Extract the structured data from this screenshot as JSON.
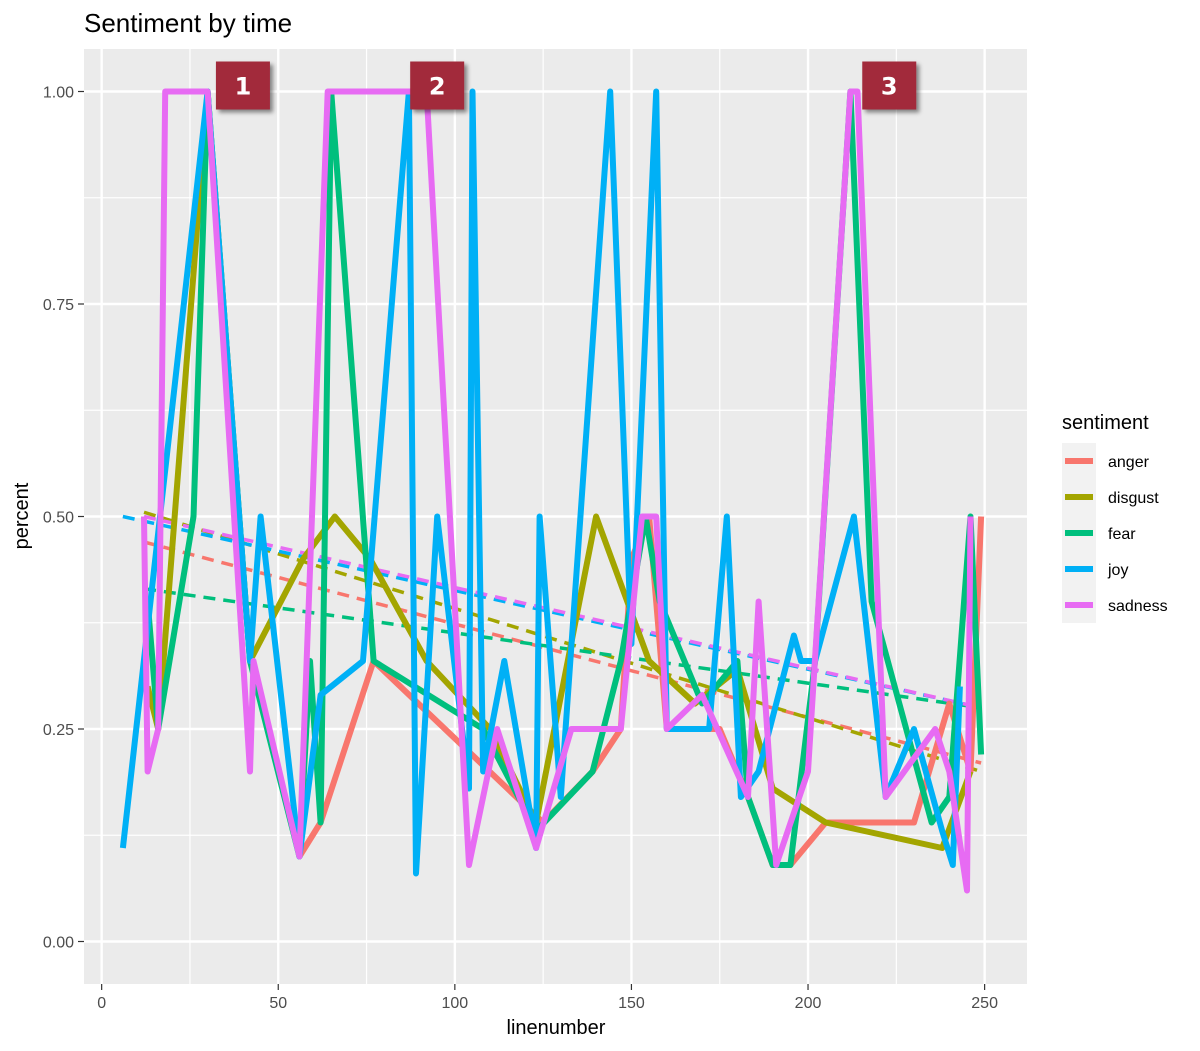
{
  "chart_data": {
    "type": "line",
    "title": "Sentiment by time",
    "xlabel": "linenumber",
    "ylabel": "percent",
    "xlim": [
      -5,
      262
    ],
    "ylim": [
      -0.05,
      1.05
    ],
    "x_ticks": [
      0,
      50,
      100,
      150,
      200,
      250
    ],
    "x_tick_labels": [
      "0",
      "50",
      "100",
      "150",
      "200",
      "250"
    ],
    "y_ticks": [
      0,
      0.25,
      0.5,
      0.75,
      1.0
    ],
    "y_tick_labels": [
      "0.00",
      "0.25",
      "0.50",
      "0.75",
      "1.00"
    ],
    "grid": true,
    "legend": {
      "title": "sentiment",
      "position": "right"
    },
    "series": [
      {
        "name": "anger",
        "color": "#F8766D",
        "points": [
          [
            56,
            0.1
          ],
          [
            62,
            0.14
          ],
          [
            77,
            0.33
          ],
          [
            125,
            0.14
          ],
          [
            139,
            0.2
          ],
          [
            147,
            0.25
          ],
          [
            150,
            0.45
          ],
          [
            155,
            0.5
          ],
          [
            160,
            0.25
          ],
          [
            175,
            0.25
          ],
          [
            183,
            0.17
          ],
          [
            190,
            0.09
          ],
          [
            195,
            0.09
          ],
          [
            205,
            0.14
          ],
          [
            230,
            0.14
          ],
          [
            240,
            0.28
          ],
          [
            246,
            0.2
          ],
          [
            249,
            0.5
          ]
        ],
        "trend": [
          [
            12,
            0.47
          ],
          [
            249,
            0.21
          ]
        ]
      },
      {
        "name": "disgust",
        "color": "#A3A500",
        "points": [
          [
            13,
            0.3
          ],
          [
            16,
            0.25
          ],
          [
            30,
            1.0
          ],
          [
            42,
            0.33
          ],
          [
            57,
            0.45
          ],
          [
            66,
            0.5
          ],
          [
            76,
            0.45
          ],
          [
            92,
            0.33
          ],
          [
            110,
            0.25
          ],
          [
            123,
            0.14
          ],
          [
            140,
            0.5
          ],
          [
            155,
            0.33
          ],
          [
            168,
            0.28
          ],
          [
            180,
            0.32
          ],
          [
            190,
            0.18
          ],
          [
            205,
            0.14
          ],
          [
            238,
            0.11
          ],
          [
            246,
            0.2
          ]
        ],
        "trend": [
          [
            12,
            0.505
          ],
          [
            249,
            0.2
          ]
        ]
      },
      {
        "name": "fear",
        "color": "#00BF7D",
        "points": [
          [
            13,
            0.4
          ],
          [
            16,
            0.25
          ],
          [
            26,
            0.5
          ],
          [
            30,
            1.0
          ],
          [
            42,
            0.33
          ],
          [
            56,
            0.1
          ],
          [
            59,
            0.33
          ],
          [
            62,
            0.14
          ],
          [
            65,
            1.0
          ],
          [
            77,
            0.33
          ],
          [
            108,
            0.25
          ],
          [
            123,
            0.13
          ],
          [
            139,
            0.2
          ],
          [
            147,
            0.33
          ],
          [
            154,
            0.5
          ],
          [
            158,
            0.4
          ],
          [
            170,
            0.28
          ],
          [
            180,
            0.33
          ],
          [
            183,
            0.17
          ],
          [
            190,
            0.09
          ],
          [
            195,
            0.09
          ],
          [
            202,
            0.33
          ],
          [
            212,
            1.0
          ],
          [
            218,
            0.4
          ],
          [
            235,
            0.14
          ],
          [
            240,
            0.17
          ],
          [
            246,
            0.5
          ],
          [
            249,
            0.22
          ]
        ],
        "trend": [
          [
            12,
            0.415
          ],
          [
            249,
            0.275
          ]
        ]
      },
      {
        "name": "joy",
        "color": "#00B0F6",
        "points": [
          [
            6,
            0.11
          ],
          [
            30,
            1.0
          ],
          [
            42,
            0.33
          ],
          [
            45,
            0.5
          ],
          [
            56,
            0.1
          ],
          [
            62,
            0.29
          ],
          [
            74,
            0.33
          ],
          [
            87,
            1.0
          ],
          [
            89,
            0.08
          ],
          [
            95,
            0.5
          ],
          [
            104,
            0.18
          ],
          [
            105,
            1.0
          ],
          [
            108,
            0.2
          ],
          [
            114,
            0.33
          ],
          [
            123,
            0.11
          ],
          [
            124,
            0.5
          ],
          [
            130,
            0.17
          ],
          [
            144,
            1.0
          ],
          [
            150,
            0.35
          ],
          [
            157,
            1.0
          ],
          [
            160,
            0.25
          ],
          [
            172,
            0.25
          ],
          [
            177,
            0.5
          ],
          [
            181,
            0.17
          ],
          [
            186,
            0.2
          ],
          [
            196,
            0.36
          ],
          [
            198,
            0.33
          ],
          [
            202,
            0.33
          ],
          [
            213,
            0.5
          ],
          [
            222,
            0.17
          ],
          [
            230,
            0.25
          ],
          [
            238,
            0.13
          ],
          [
            241,
            0.09
          ],
          [
            243,
            0.3
          ]
        ],
        "trend": [
          [
            6,
            0.5
          ],
          [
            249,
            0.275
          ]
        ]
      },
      {
        "name": "sadness",
        "color": "#E76BF3",
        "points": [
          [
            12,
            0.5
          ],
          [
            13,
            0.2
          ],
          [
            16,
            0.25
          ],
          [
            18,
            1.0
          ],
          [
            30,
            1.0
          ],
          [
            42,
            0.2
          ],
          [
            43,
            0.33
          ],
          [
            56,
            0.1
          ],
          [
            64,
            1.0
          ],
          [
            89,
            1.0
          ],
          [
            92,
            1.0
          ],
          [
            104,
            0.09
          ],
          [
            112,
            0.25
          ],
          [
            123,
            0.11
          ],
          [
            133,
            0.25
          ],
          [
            147,
            0.25
          ],
          [
            153,
            0.5
          ],
          [
            157,
            0.5
          ],
          [
            160,
            0.25
          ],
          [
            170,
            0.29
          ],
          [
            183,
            0.17
          ],
          [
            186,
            0.4
          ],
          [
            191,
            0.09
          ],
          [
            200,
            0.2
          ],
          [
            212,
            1.0
          ],
          [
            214,
            1.0
          ],
          [
            222,
            0.17
          ],
          [
            236,
            0.25
          ],
          [
            240,
            0.2
          ],
          [
            245,
            0.06
          ],
          [
            246,
            0.5
          ]
        ],
        "trend": [
          [
            12,
            0.5
          ],
          [
            249,
            0.275
          ]
        ]
      }
    ],
    "annotations": [
      {
        "label": "1",
        "x": 40,
        "y": 1.0
      },
      {
        "label": "2",
        "x": 95,
        "y": 1.0
      },
      {
        "label": "3",
        "x": 223,
        "y": 1.0
      }
    ],
    "badge_color": "#A22B3B"
  }
}
